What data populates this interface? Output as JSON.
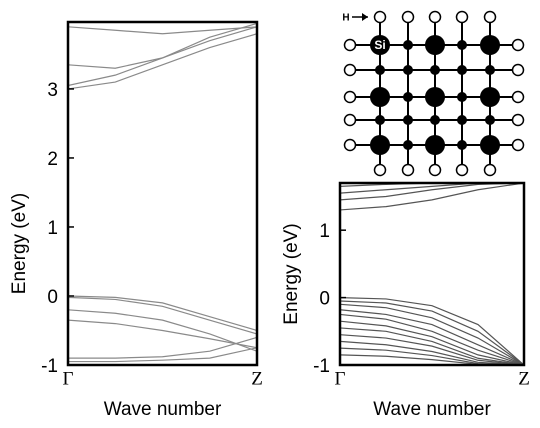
{
  "chart_data": [
    {
      "type": "line",
      "xlabel": "Wave number",
      "ylabel": "Energy (eV)",
      "xlim": [
        0,
        1
      ],
      "ylim": [
        -1,
        3.97
      ],
      "xticks": [
        {
          "value": 0,
          "label": "Γ"
        },
        {
          "value": 1,
          "label": "Z"
        }
      ],
      "yticks": [
        -1,
        0,
        1,
        2,
        3
      ],
      "color": "#8a8a8a",
      "x": [
        0,
        0.25,
        0.5,
        0.75,
        1
      ],
      "series": [
        {
          "values": [
            0,
            -0.02,
            -0.1,
            -0.3,
            -0.5
          ]
        },
        {
          "values": [
            -0.02,
            -0.05,
            -0.15,
            -0.35,
            -0.55
          ]
        },
        {
          "values": [
            -0.2,
            -0.25,
            -0.35,
            -0.55,
            -0.8
          ]
        },
        {
          "values": [
            -0.35,
            -0.4,
            -0.5,
            -0.62,
            -0.75
          ]
        },
        {
          "values": [
            -0.9,
            -0.9,
            -0.88,
            -0.8,
            -0.6
          ]
        },
        {
          "values": [
            -0.95,
            -0.95,
            -0.93,
            -0.9,
            -0.75
          ]
        },
        {
          "values": [
            3.0,
            3.1,
            3.35,
            3.6,
            3.8
          ]
        },
        {
          "values": [
            3.05,
            3.2,
            3.45,
            3.75,
            3.95
          ]
        },
        {
          "values": [
            3.35,
            3.3,
            3.45,
            3.7,
            3.9
          ]
        },
        {
          "values": [
            3.9,
            3.85,
            3.8,
            3.85,
            3.9
          ]
        }
      ]
    },
    {
      "type": "line",
      "xlabel": "Wave number",
      "ylabel": "Energy (eV)",
      "xlim": [
        0,
        1
      ],
      "ylim": [
        -1,
        1.7
      ],
      "xticks": [
        {
          "value": 0,
          "label": "Γ"
        },
        {
          "value": 1,
          "label": "Z"
        }
      ],
      "yticks": [
        -1,
        0,
        1
      ],
      "color": "#555555",
      "x": [
        0,
        0.25,
        0.5,
        0.75,
        1
      ],
      "series": [
        {
          "values": [
            1.3,
            1.35,
            1.45,
            1.6,
            1.7
          ]
        },
        {
          "values": [
            1.45,
            1.5,
            1.6,
            1.68,
            1.7
          ]
        },
        {
          "values": [
            1.55,
            1.6,
            1.65,
            1.7,
            1.7
          ]
        },
        {
          "values": [
            1.65,
            1.68,
            1.7,
            1.7,
            1.7
          ]
        },
        {
          "values": [
            0,
            -0.02,
            -0.12,
            -0.4,
            -1
          ]
        },
        {
          "values": [
            -0.05,
            -0.08,
            -0.2,
            -0.5,
            -1
          ]
        },
        {
          "values": [
            -0.1,
            -0.15,
            -0.3,
            -0.6,
            -1
          ]
        },
        {
          "values": [
            -0.18,
            -0.25,
            -0.4,
            -0.7,
            -1
          ]
        },
        {
          "values": [
            -0.25,
            -0.32,
            -0.5,
            -0.78,
            -1
          ]
        },
        {
          "values": [
            -0.35,
            -0.42,
            -0.58,
            -0.85,
            -1
          ]
        },
        {
          "values": [
            -0.45,
            -0.5,
            -0.65,
            -0.9,
            -1
          ]
        },
        {
          "values": [
            -0.55,
            -0.6,
            -0.72,
            -0.93,
            -1
          ]
        },
        {
          "values": [
            -0.65,
            -0.7,
            -0.8,
            -0.96,
            -1
          ]
        },
        {
          "values": [
            -0.75,
            -0.78,
            -0.86,
            -0.98,
            -1
          ]
        },
        {
          "values": [
            -0.85,
            -0.87,
            -0.92,
            -0.99,
            -1
          ]
        }
      ]
    }
  ],
  "diagram": {
    "h_label": "H",
    "si_label": "Si"
  }
}
